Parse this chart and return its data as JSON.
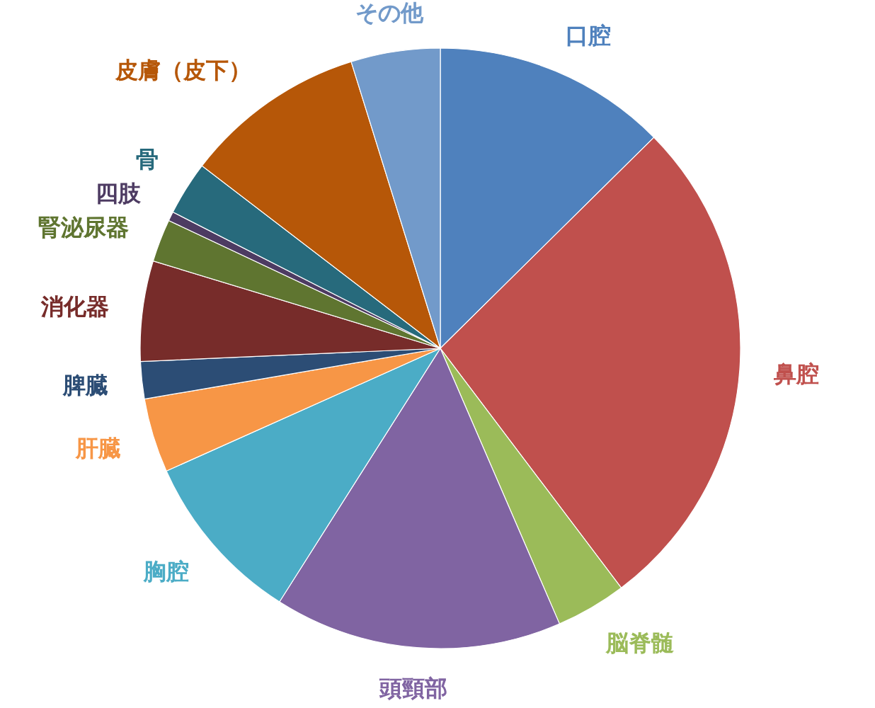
{
  "chart_data": {
    "type": "pie",
    "categories": [
      "口腔",
      "鼻腔",
      "脳脊髄",
      "頭頸部",
      "胸腔",
      "肝臓",
      "脾臓",
      "消化器",
      "腎泌尿器",
      "四肢",
      "骨",
      "皮膚（皮下）",
      "その他"
    ],
    "values": [
      12.6,
      27.1,
      3.8,
      15.5,
      9.3,
      4.0,
      2.0,
      5.4,
      2.3,
      0.5,
      2.9,
      9.8,
      4.8
    ],
    "colors": [
      "#4f81bd",
      "#c0504d",
      "#9bbb59",
      "#8064a2",
      "#4bacc6",
      "#f79646",
      "#2c4d75",
      "#772c2a",
      "#5f7530",
      "#4d3b62",
      "#276a7c",
      "#b65708",
      "#729aca"
    ]
  }
}
